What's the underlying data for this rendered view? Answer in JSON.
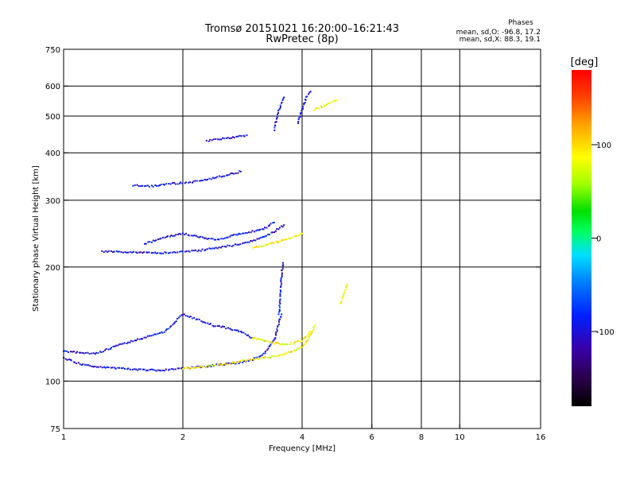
{
  "chart_data": {
    "type": "scatter",
    "title": "Tromsø 20151021 16:20:00–16:21:43",
    "subtitle": "RwPretec (8p)",
    "xlabel": "Frequency [MHz]",
    "ylabel": "Stationary phase Virtual Height [km]",
    "x_scale": "log",
    "y_scale": "log",
    "xlim": [
      1,
      16
    ],
    "ylim": [
      75,
      750
    ],
    "x_ticks": [
      1,
      2,
      4,
      6,
      8,
      10,
      16
    ],
    "x_tick_labels": [
      "1",
      "2",
      "4",
      "6",
      "8",
      "10",
      "16"
    ],
    "y_ticks": [
      75,
      100,
      200,
      300,
      400,
      500,
      600,
      750
    ],
    "y_tick_labels": [
      "75",
      "100",
      "200",
      "300",
      "400",
      "500",
      "600",
      "750"
    ],
    "grid": true,
    "stats": {
      "heading": "Phases",
      "line_o": "mean, sd,O: -96.8, 17.2",
      "line_x": "mean, sd,X:  88.3, 19.1"
    },
    "colorbar": {
      "label": "[deg]",
      "min": -180,
      "max": 180,
      "ticks": [
        100,
        0,
        -100
      ],
      "tick_labels": [
        "100",
        "0",
        "-100"
      ]
    },
    "series": [
      {
        "mode": "O",
        "phase_mean": -96.8,
        "traces": [
          {
            "x": [
              1.0,
              1.1,
              1.2,
              1.4,
              1.6,
              1.8,
              2.0,
              2.2,
              2.4,
              2.6,
              2.8,
              3.0,
              3.2,
              3.4,
              3.55
            ],
            "y": [
              115,
              111,
              109,
              108,
              107,
              107,
              108,
              109,
              110,
              111,
              112,
              114,
              118,
              128,
              150
            ]
          },
          {
            "x": [
              3.5,
              3.52,
              3.54,
              3.56,
              3.58
            ],
            "y": [
              150,
              165,
              180,
              195,
              205
            ]
          },
          {
            "x": [
              1.0,
              1.2,
              1.4,
              1.6,
              1.8,
              2.0,
              2.2,
              2.4,
              2.6,
              2.8,
              3.0
            ],
            "y": [
              120,
              118,
              125,
              130,
              135,
              150,
              145,
              140,
              138,
              135,
              130
            ]
          },
          {
            "x": [
              1.25,
              1.4,
              1.6,
              1.8,
              2.0,
              2.2,
              2.4,
              2.6,
              2.8,
              3.0,
              3.2,
              3.4,
              3.6
            ],
            "y": [
              220,
              219,
              218,
              218,
              219,
              221,
              224,
              227,
              230,
              234,
              240,
              248,
              258
            ]
          },
          {
            "x": [
              1.6,
              1.8,
              2.0,
              2.2,
              2.4,
              2.6,
              2.8,
              3.0,
              3.2,
              3.4
            ],
            "y": [
              230,
              240,
              245,
              240,
              236,
              240,
              245,
              248,
              252,
              262
            ]
          },
          {
            "x": [
              1.5,
              1.6,
              1.7,
              1.8,
              1.9,
              2.0,
              2.2,
              2.4,
              2.6,
              2.8
            ],
            "y": [
              328,
              327,
              327,
              330,
              332,
              333,
              337,
              343,
              350,
              357
            ]
          },
          {
            "x": [
              2.3,
              2.5,
              2.7,
              2.9
            ],
            "y": [
              430,
              435,
              440,
              445
            ]
          },
          {
            "x": [
              3.9,
              3.95,
              4.0,
              4.05,
              4.1,
              4.2
            ],
            "y": [
              480,
              500,
              520,
              540,
              560,
              580
            ]
          },
          {
            "x": [
              3.4,
              3.5,
              3.6
            ],
            "y": [
              460,
              520,
              560
            ]
          }
        ]
      },
      {
        "mode": "X",
        "phase_mean": 88.3,
        "traces": [
          {
            "x": [
              2.0,
              2.2,
              2.4,
              2.6,
              2.8,
              3.0,
              3.2,
              3.4,
              3.6,
              3.8,
              4.0,
              4.1,
              4.2,
              4.3
            ],
            "y": [
              108,
              109,
              110,
              111,
              113,
              114,
              115,
              116,
              118,
              120,
              123,
              126,
              132,
              140
            ]
          },
          {
            "x": [
              3.0,
              3.2,
              3.4,
              3.6,
              3.8,
              4.0,
              4.2
            ],
            "y": [
              130,
              128,
              126,
              125,
              126,
              128,
              135
            ]
          },
          {
            "x": [
              3.0,
              3.2,
              3.4,
              3.6,
              3.8,
              4.0
            ],
            "y": [
              225,
              228,
              232,
              236,
              240,
              245
            ]
          },
          {
            "x": [
              4.3,
              4.5,
              4.7,
              4.9
            ],
            "y": [
              520,
              530,
              540,
              550
            ]
          },
          {
            "x": [
              5.0,
              5.1,
              5.2
            ],
            "y": [
              160,
              170,
              180
            ]
          }
        ]
      }
    ]
  }
}
